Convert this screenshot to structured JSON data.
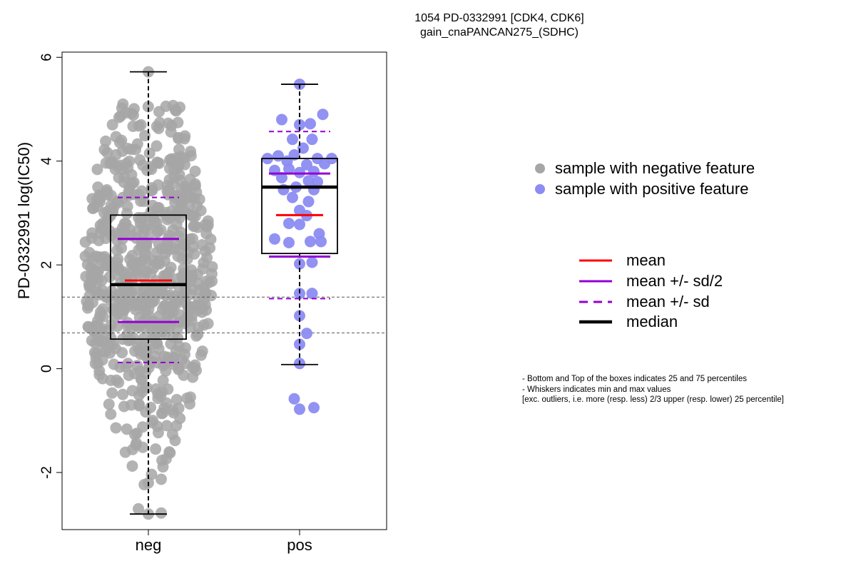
{
  "chart_data": {
    "type": "box",
    "title_lines": [
      "1054 PD-0332991 [CDK4, CDK6]",
      "gain_cnaPANCAN275_(SDHC)"
    ],
    "ylabel": "PD-0332991 log(IC50)",
    "xlabel": "",
    "ylim": [
      -3.1,
      6.1
    ],
    "yticks": [
      -2,
      0,
      2,
      4,
      6
    ],
    "grid": false,
    "reference_lines": [
      1.38,
      0.69
    ],
    "categories": [
      "neg",
      "pos"
    ],
    "groups": [
      {
        "name": "neg",
        "color": "#a6a6a6",
        "whisker_low": -2.8,
        "q1": 0.57,
        "median": 1.62,
        "q3": 2.96,
        "whisker_high": 5.72,
        "mean": 1.7,
        "mean_minus_half_sd": 0.9,
        "mean_plus_half_sd": 2.5,
        "mean_minus_sd": 0.12,
        "mean_plus_sd": 3.3
      },
      {
        "name": "pos",
        "color": "#8c8cf2",
        "whisker_low": 0.08,
        "q1": 2.22,
        "median": 3.5,
        "q3": 4.05,
        "whisker_high": 5.48,
        "mean": 2.96,
        "mean_minus_half_sd": 2.16,
        "mean_plus_half_sd": 3.76,
        "mean_minus_sd": 1.35,
        "mean_plus_sd": 4.57
      }
    ],
    "points_pos": [
      [
        0,
        5.48
      ],
      [
        -0.1,
        4.8
      ],
      [
        0.13,
        4.9
      ],
      [
        0,
        4.7
      ],
      [
        0.06,
        4.72
      ],
      [
        -0.04,
        4.42
      ],
      [
        0.07,
        4.42
      ],
      [
        0.02,
        4.25
      ],
      [
        -0.18,
        4.05
      ],
      [
        -0.12,
        4.1
      ],
      [
        -0.03,
        4.12
      ],
      [
        0.1,
        4.05
      ],
      [
        0.18,
        4.05
      ],
      [
        -0.07,
        4.0
      ],
      [
        0.04,
        3.93
      ],
      [
        0.14,
        3.95
      ],
      [
        -0.14,
        3.82
      ],
      [
        -0.06,
        3.85
      ],
      [
        0.0,
        3.78
      ],
      [
        0.08,
        3.8
      ],
      [
        -0.1,
        3.68
      ],
      [
        0.05,
        3.62
      ],
      [
        0.1,
        3.6
      ],
      [
        -0.02,
        3.5
      ],
      [
        -0.09,
        3.45
      ],
      [
        0.08,
        3.45
      ],
      [
        -0.04,
        3.3
      ],
      [
        0.05,
        3.22
      ],
      [
        0.0,
        3.05
      ],
      [
        0.04,
        2.95
      ],
      [
        -0.06,
        2.8
      ],
      [
        0.0,
        2.78
      ],
      [
        0.11,
        2.6
      ],
      [
        -0.14,
        2.5
      ],
      [
        0.06,
        2.45
      ],
      [
        0.12,
        2.45
      ],
      [
        -0.06,
        2.43
      ],
      [
        0.0,
        2.02
      ],
      [
        0.07,
        2.05
      ],
      [
        0.0,
        1.45
      ],
      [
        0.07,
        1.45
      ],
      [
        0.0,
        1.02
      ],
      [
        0.04,
        0.68
      ],
      [
        0.0,
        0.47
      ],
      [
        0.0,
        0.1
      ],
      [
        -0.03,
        -0.58
      ],
      [
        0.0,
        -0.78
      ],
      [
        0.08,
        -0.75
      ]
    ]
  },
  "legend": {
    "samples": [
      {
        "label": "sample with negative feature",
        "color": "#a6a6a6"
      },
      {
        "label": "sample with positive feature",
        "color": "#8c8cf2"
      }
    ],
    "lines": [
      {
        "label": "mean",
        "color": "#ff0000",
        "style": "solid"
      },
      {
        "label": "mean +/- sd/2",
        "color": "#9400d3",
        "style": "solid"
      },
      {
        "label": "mean +/- sd",
        "color": "#9400d3",
        "style": "dashed"
      },
      {
        "label": "median",
        "color": "#000000",
        "style": "solid-thick"
      }
    ]
  },
  "notes": [
    "- Bottom and Top of the boxes indicates 25 and 75 percentiles",
    "- Whiskers indicates min and max values",
    "[exc. outliers, i.e. more (resp. less) 2/3 upper (resp. lower) 25 percentile]"
  ]
}
